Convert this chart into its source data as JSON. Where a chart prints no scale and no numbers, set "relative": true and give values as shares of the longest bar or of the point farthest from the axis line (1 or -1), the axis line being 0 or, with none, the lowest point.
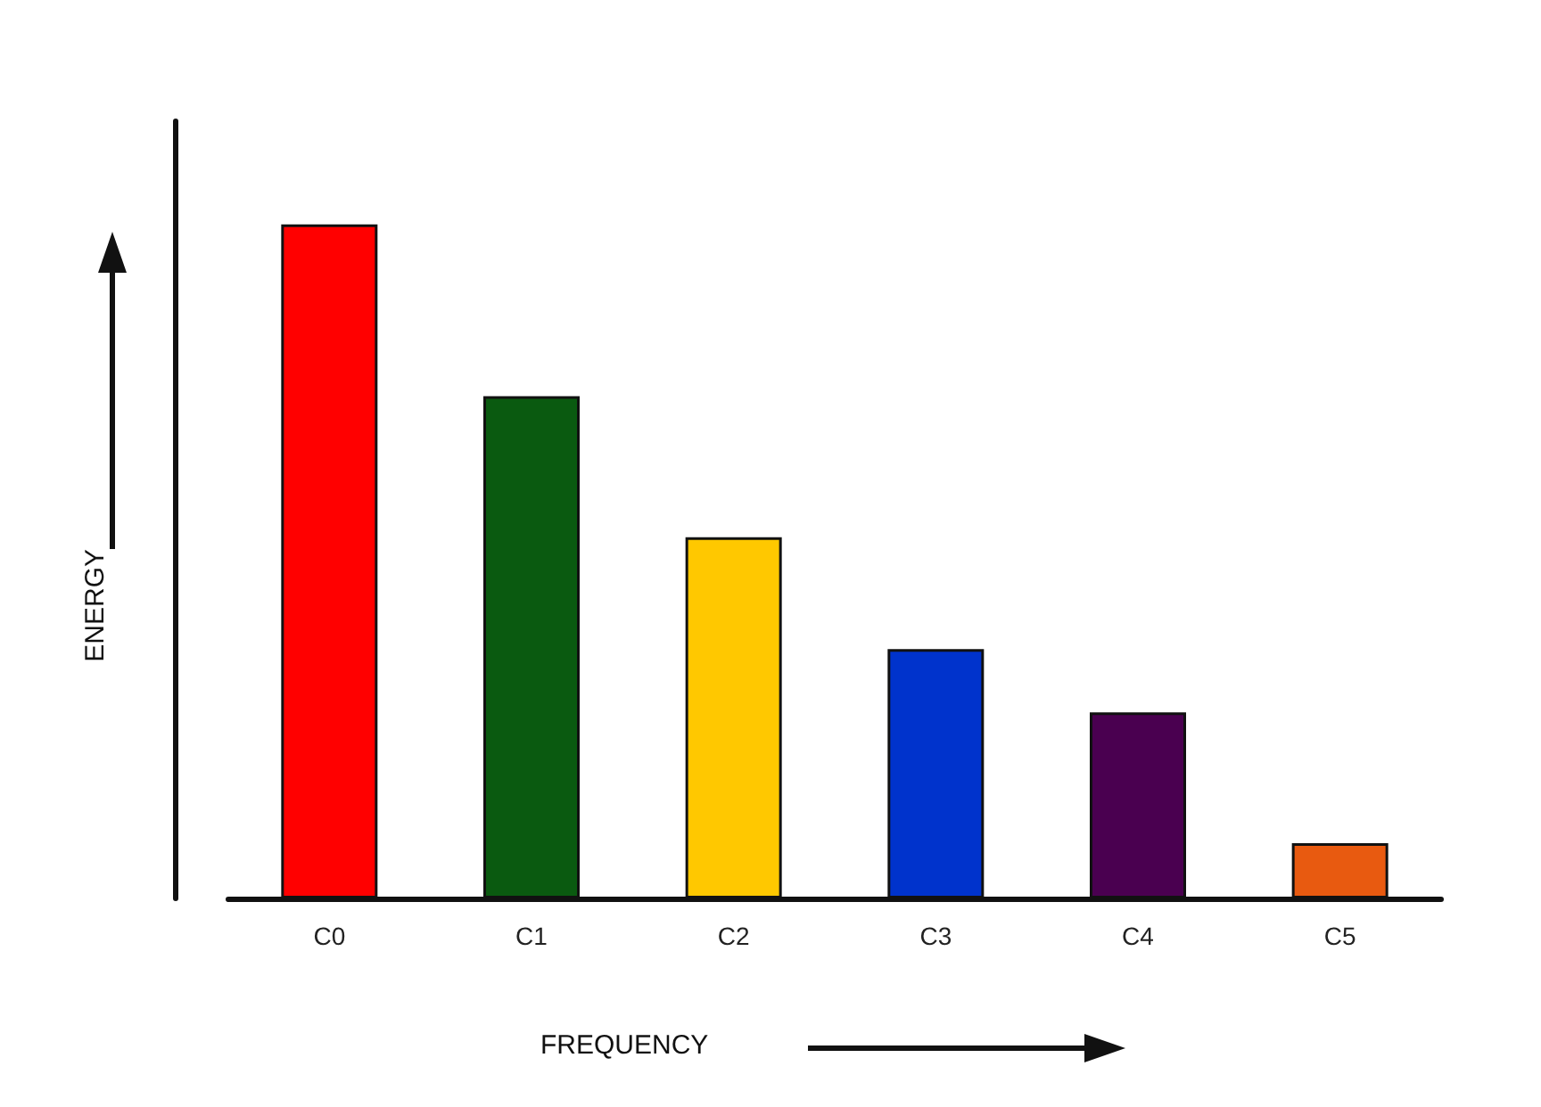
{
  "chart_data": {
    "type": "bar",
    "xlabel": "FREQUENCY",
    "ylabel": "ENERGY",
    "relative": true,
    "categories": [
      "C0",
      "C1",
      "C2",
      "C3",
      "C4",
      "C5"
    ],
    "values": [
      1,
      0.745,
      0.536,
      0.37,
      0.276,
      0.082
    ],
    "colors": [
      "#ff0000",
      "#0a5a10",
      "#ffc800",
      "#0033cc",
      "#4a0050",
      "#e85a10"
    ],
    "grid": false
  }
}
